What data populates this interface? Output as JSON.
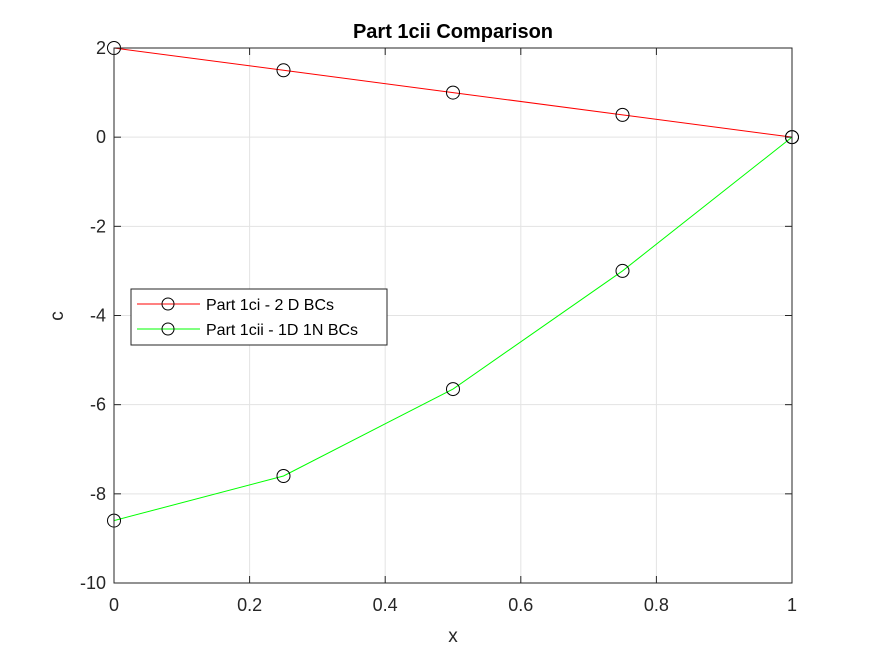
{
  "chart_data": {
    "type": "line",
    "title": "Part 1cii Comparison",
    "xlabel": "x",
    "ylabel": "c",
    "xlim": [
      0,
      1
    ],
    "ylim": [
      -10,
      2
    ],
    "xticks": [
      0,
      0.2,
      0.4,
      0.6,
      0.8,
      1
    ],
    "yticks": [
      -10,
      -8,
      -6,
      -4,
      -2,
      0,
      2
    ],
    "xtick_labels": [
      "0",
      "0.2",
      "0.4",
      "0.6",
      "0.8",
      "1"
    ],
    "ytick_labels": [
      "-10",
      "-8",
      "-6",
      "-4",
      "-2",
      "0",
      "2"
    ],
    "grid": true,
    "legend_position": "middle-left",
    "series": [
      {
        "name": "Part 1ci - 2 D BCs",
        "color": "#ff0000",
        "marker": "circle",
        "x": [
          0,
          0.25,
          0.5,
          0.75,
          1
        ],
        "y": [
          2,
          1.5,
          1,
          0.5,
          0
        ]
      },
      {
        "name": "Part 1cii - 1D 1N BCs",
        "color": "#00ff00",
        "marker": "circle",
        "x": [
          0,
          0.25,
          0.5,
          0.75,
          1
        ],
        "y": [
          -8.6,
          -7.6,
          -5.65,
          -3,
          0
        ]
      }
    ]
  }
}
